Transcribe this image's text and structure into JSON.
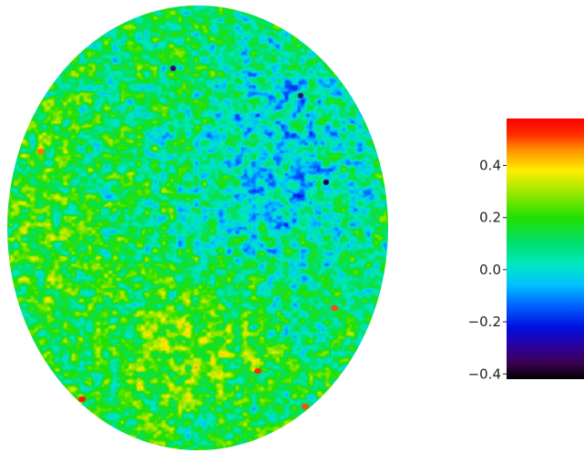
{
  "chart_data": {
    "type": "heatmap",
    "projection": "full-sky disk (mollweide-like ellipse)",
    "title": "",
    "colorbar": {
      "colormap": "spectral (black-purple-blue-cyan-green-yellow-orange-red)",
      "range": [
        -0.42,
        0.58
      ],
      "ticks": [
        {
          "value": -0.4,
          "label": "−0.4"
        },
        {
          "value": -0.2,
          "label": "−0.2"
        },
        {
          "value": 0.0,
          "label": "0.0"
        },
        {
          "value": 0.2,
          "label": "0.2"
        },
        {
          "value": 0.4,
          "label": "0.4"
        }
      ],
      "stops": [
        {
          "value": -0.42,
          "color": "#000000"
        },
        {
          "value": -0.36,
          "color": "#3a0050"
        },
        {
          "value": -0.29,
          "color": "#2a00a0"
        },
        {
          "value": -0.22,
          "color": "#0010e0"
        },
        {
          "value": -0.14,
          "color": "#0060ff"
        },
        {
          "value": -0.06,
          "color": "#00c0ff"
        },
        {
          "value": 0.02,
          "color": "#00e8c0"
        },
        {
          "value": 0.1,
          "color": "#00e070"
        },
        {
          "value": 0.2,
          "color": "#20e000"
        },
        {
          "value": 0.3,
          "color": "#a0e800"
        },
        {
          "value": 0.38,
          "color": "#ffee00"
        },
        {
          "value": 0.46,
          "color": "#ff9000"
        },
        {
          "value": 0.52,
          "color": "#ff2a00"
        },
        {
          "value": 0.58,
          "color": "#ff0000"
        }
      ]
    },
    "value_distribution": {
      "typical_range": [
        -0.25,
        0.45
      ],
      "dominant": "green/cyan (~0.05 to 0.25)"
    },
    "regions": [
      {
        "where": "upper-right quadrant",
        "mean_value": -0.08
      },
      {
        "where": "lower-center",
        "mean_value": 0.28
      },
      {
        "where": "left edge",
        "mean_value": 0.2
      },
      {
        "where": "center",
        "mean_value": 0.12
      }
    ],
    "hotspots": [
      {
        "where": "bottom-left edge",
        "value": 0.55
      },
      {
        "where": "bottom-center",
        "value": 0.52
      },
      {
        "where": "bottom-right",
        "value": 0.5
      },
      {
        "where": "upper-right",
        "value": -0.38
      }
    ]
  }
}
